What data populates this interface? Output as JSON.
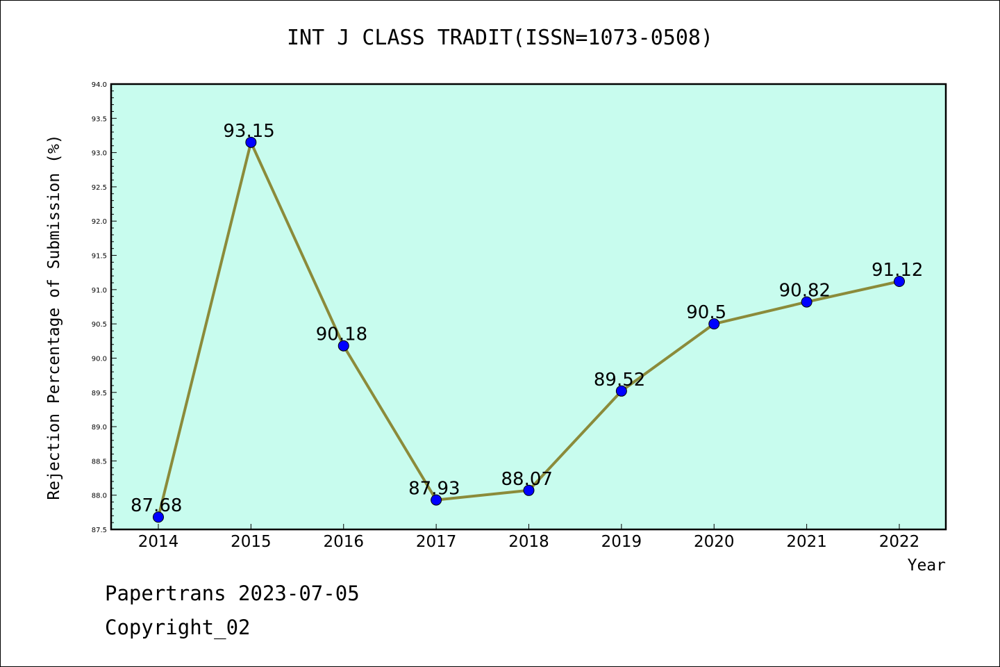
{
  "chart_data": {
    "type": "line",
    "title": "INT J CLASS TRADIT(ISSN=1073-0508)",
    "xlabel": "Year",
    "ylabel": "Rejection Percentage of Submission (%)",
    "categories": [
      "2014",
      "2015",
      "2016",
      "2017",
      "2018",
      "2019",
      "2020",
      "2021",
      "2022"
    ],
    "values": [
      87.68,
      93.15,
      90.18,
      87.93,
      88.07,
      89.52,
      90.5,
      90.82,
      91.12
    ],
    "data_labels": [
      "87.68",
      "93.15",
      "90.18",
      "87.93",
      "88.07",
      "89.52",
      "90.5",
      "90.82",
      "91.12"
    ],
    "ylim": [
      87.5,
      94.0
    ],
    "yticks": [
      "87.5",
      "88.0",
      "88.5",
      "89.0",
      "89.5",
      "90.0",
      "90.5",
      "91.0",
      "91.5",
      "92.0",
      "92.5",
      "93.0",
      "93.5",
      "94.0"
    ],
    "grid": false,
    "colors": {
      "plot_background": "#c8fcee",
      "line": "#8b8b3a",
      "marker": "#0000ff"
    }
  },
  "footer": {
    "line1": "Papertrans 2023-07-05",
    "line2": "Copyright_02"
  }
}
